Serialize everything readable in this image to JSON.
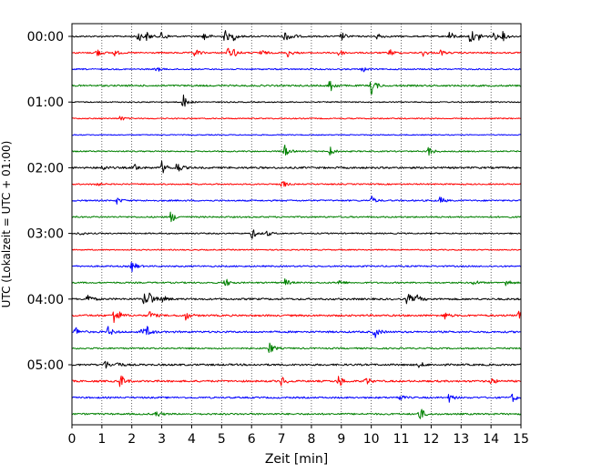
{
  "chart_data": {
    "type": "line",
    "title": "",
    "xlabel": "Zeit  [min]",
    "ylabel": "UTC (Lokalzeit = UTC + 01:00)",
    "xlim": [
      0,
      15
    ],
    "x_ticks": [
      0,
      1,
      2,
      3,
      4,
      5,
      6,
      7,
      8,
      9,
      10,
      11,
      12,
      13,
      14,
      15
    ],
    "x_grid": "dotted vertical lines at each minute",
    "y_ticks": [
      "00:00",
      "01:00",
      "02:00",
      "03:00",
      "04:00",
      "05:00"
    ],
    "row_minutes": 15,
    "row_color_cycle": [
      "#000000",
      "#ff0000",
      "#0000ff",
      "#008000"
    ],
    "rows": [
      {
        "noise": 0.8,
        "events": [
          [
            2.2,
            3.2
          ],
          [
            2.5,
            2.4
          ],
          [
            3.0,
            3.0
          ],
          [
            4.4,
            2.8
          ],
          [
            5.1,
            3.6
          ],
          [
            5.4,
            2.2
          ],
          [
            7.1,
            3.2
          ],
          [
            7.3,
            2.6
          ],
          [
            9.0,
            2.2
          ],
          [
            10.2,
            2.0
          ],
          [
            12.6,
            3.0
          ],
          [
            13.3,
            4.2
          ],
          [
            13.6,
            2.2
          ],
          [
            14.1,
            2.2
          ],
          [
            14.4,
            2.4
          ]
        ]
      },
      {
        "noise": 0.8,
        "events": [
          [
            0.8,
            2.6
          ],
          [
            1.4,
            1.8
          ],
          [
            4.1,
            2.4
          ],
          [
            5.2,
            2.6
          ],
          [
            5.4,
            2.4
          ],
          [
            6.3,
            1.8
          ],
          [
            7.2,
            2.2
          ],
          [
            8.9,
            2.2
          ],
          [
            10.6,
            2.2
          ],
          [
            11.7,
            2.0
          ],
          [
            12.3,
            1.6
          ]
        ]
      },
      {
        "noise": 0.7,
        "events": [
          [
            2.8,
            1.6
          ],
          [
            9.7,
            1.6
          ]
        ]
      },
      {
        "noise": 0.9,
        "events": [
          [
            8.6,
            4.2
          ],
          [
            10.0,
            4.8
          ]
        ]
      },
      {
        "noise": 0.6,
        "events": [
          [
            3.7,
            4.2
          ]
        ]
      },
      {
        "noise": 0.6,
        "events": [
          [
            1.6,
            1.4
          ]
        ]
      },
      {
        "noise": 0.5,
        "events": []
      },
      {
        "noise": 0.7,
        "events": [
          [
            7.1,
            3.2
          ],
          [
            8.6,
            2.8
          ],
          [
            11.9,
            3.0
          ]
        ]
      },
      {
        "noise": 1.0,
        "events": [
          [
            1.0,
            1.6
          ],
          [
            2.1,
            1.8
          ],
          [
            3.0,
            3.2
          ],
          [
            3.5,
            3.2
          ]
        ]
      },
      {
        "noise": 0.7,
        "events": [
          [
            0.7,
            2.4
          ],
          [
            7.0,
            2.4
          ]
        ]
      },
      {
        "noise": 0.8,
        "events": [
          [
            1.5,
            1.6
          ],
          [
            10.0,
            2.2
          ],
          [
            12.3,
            2.0
          ]
        ]
      },
      {
        "noise": 0.8,
        "events": [
          [
            3.3,
            3.2
          ]
        ]
      },
      {
        "noise": 0.7,
        "events": [
          [
            0.2,
            1.4
          ],
          [
            6.0,
            3.0
          ],
          [
            6.5,
            1.6
          ]
        ]
      },
      {
        "noise": 0.6,
        "events": []
      },
      {
        "noise": 0.8,
        "events": [
          [
            2.0,
            3.2
          ]
        ]
      },
      {
        "noise": 0.8,
        "events": [
          [
            5.1,
            2.8
          ],
          [
            7.1,
            2.2
          ],
          [
            8.9,
            1.8
          ],
          [
            13.4,
            1.8
          ],
          [
            14.5,
            2.2
          ]
        ]
      },
      {
        "noise": 1.0,
        "events": [
          [
            0.5,
            3.0
          ],
          [
            2.4,
            3.4
          ],
          [
            2.6,
            4.2
          ],
          [
            3.0,
            2.4
          ],
          [
            11.2,
            3.4
          ],
          [
            11.5,
            2.6
          ]
        ]
      },
      {
        "noise": 1.0,
        "events": [
          [
            1.4,
            4.4
          ],
          [
            1.5,
            3.2
          ],
          [
            2.6,
            2.4
          ],
          [
            3.8,
            2.2
          ],
          [
            12.4,
            2.6
          ],
          [
            14.9,
            2.4
          ]
        ]
      },
      {
        "noise": 1.0,
        "events": [
          [
            0.1,
            2.8
          ],
          [
            1.2,
            2.6
          ],
          [
            2.3,
            2.2
          ],
          [
            2.5,
            2.8
          ],
          [
            10.1,
            3.4
          ]
        ]
      },
      {
        "noise": 0.8,
        "events": [
          [
            6.6,
            3.4
          ]
        ]
      },
      {
        "noise": 1.0,
        "events": [
          [
            1.1,
            2.4
          ],
          [
            1.5,
            1.8
          ],
          [
            11.6,
            1.6
          ]
        ]
      },
      {
        "noise": 1.0,
        "events": [
          [
            1.6,
            4.0
          ],
          [
            7.0,
            2.6
          ],
          [
            8.9,
            3.6
          ],
          [
            9.8,
            2.6
          ],
          [
            14.0,
            1.8
          ]
        ]
      },
      {
        "noise": 0.9,
        "events": [
          [
            10.9,
            2.0
          ],
          [
            12.6,
            2.2
          ],
          [
            14.7,
            2.4
          ]
        ]
      },
      {
        "noise": 0.9,
        "events": [
          [
            2.8,
            2.0
          ],
          [
            11.6,
            4.2
          ]
        ]
      }
    ]
  }
}
